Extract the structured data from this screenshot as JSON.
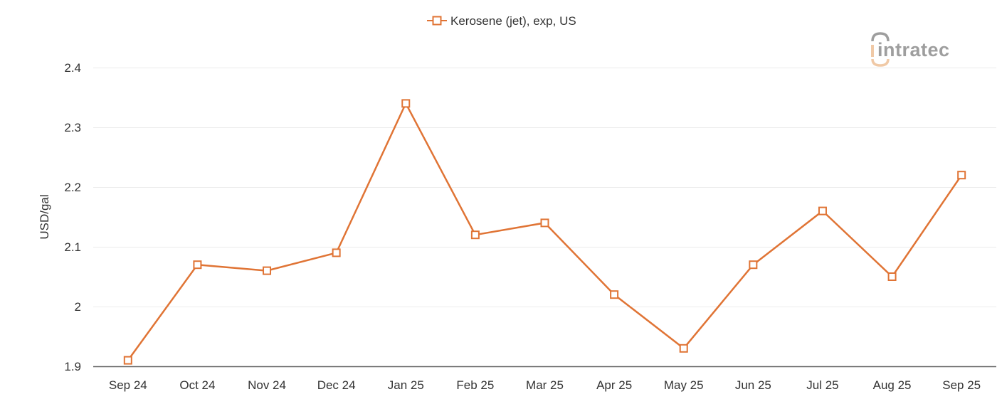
{
  "chart_data": {
    "type": "line",
    "title": "",
    "legend": {
      "position": "top-center",
      "entries": [
        "Kerosene (jet), exp, US"
      ]
    },
    "categories": [
      "Sep 24",
      "Oct 24",
      "Nov 24",
      "Dec 24",
      "Jan 25",
      "Feb 25",
      "Mar 25",
      "Apr 25",
      "May 25",
      "Jun 25",
      "Jul 25",
      "Aug 25",
      "Sep 25"
    ],
    "series": [
      {
        "name": "Kerosene (jet), exp, US",
        "color": "#e07435",
        "marker": "hollow-square",
        "values": [
          1.91,
          2.07,
          2.06,
          2.09,
          2.34,
          2.12,
          2.14,
          2.02,
          1.93,
          2.07,
          2.16,
          2.05,
          2.22
        ]
      }
    ],
    "xlabel": "",
    "ylabel": "USD/gal",
    "ylim": [
      1.9,
      2.4
    ],
    "yticks": [
      "1.9",
      "2",
      "2.1",
      "2.2",
      "2.3",
      "2.4"
    ],
    "ytick_values": [
      1.9,
      2.0,
      2.1,
      2.2,
      2.3,
      2.4
    ],
    "grid": true
  },
  "watermark": {
    "text": "intratec"
  },
  "colors": {
    "series": "#e07435",
    "grid": "#ececec",
    "axis": "#666666",
    "logo_gray": "#9e9e9e",
    "logo_peach": "#f0c9a6"
  }
}
